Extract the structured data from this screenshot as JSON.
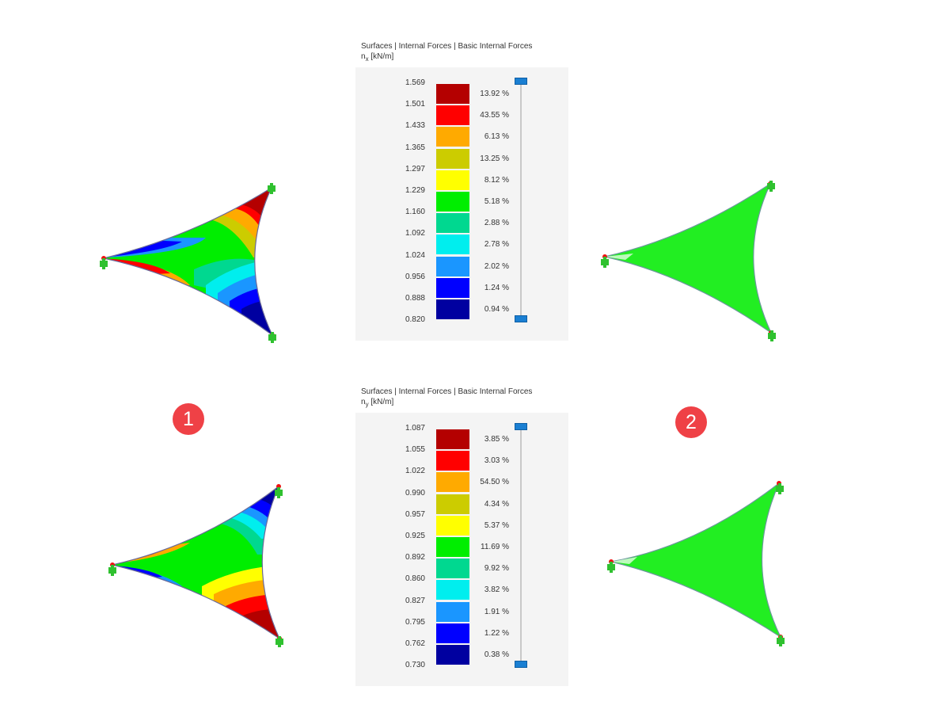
{
  "legends": [
    {
      "title": "Surfaces | Internal Forces | Basic Internal Forces",
      "symbol": "n",
      "subscript": "x",
      "unit": "[kN/m]",
      "values": [
        "1.569",
        "1.501",
        "1.433",
        "1.365",
        "1.297",
        "1.229",
        "1.160",
        "1.092",
        "1.024",
        "0.956",
        "0.888",
        "0.820"
      ],
      "percents": [
        "13.92 %",
        "43.55 %",
        "6.13 %",
        "13.25 %",
        "8.12 %",
        "5.18 %",
        "2.88 %",
        "2.78 %",
        "2.02 %",
        "1.24 %",
        "0.94 %"
      ]
    },
    {
      "title": "Surfaces | Internal Forces | Basic Internal Forces",
      "symbol": "n",
      "subscript": "y",
      "unit": "[kN/m]",
      "values": [
        "1.087",
        "1.055",
        "1.022",
        "0.990",
        "0.957",
        "0.925",
        "0.892",
        "0.860",
        "0.827",
        "0.795",
        "0.762",
        "0.730"
      ],
      "percents": [
        "3.85 %",
        "3.03 %",
        "54.50 %",
        "4.34 %",
        "5.37 %",
        "11.69 %",
        "9.92 %",
        "3.82 %",
        "1.91 %",
        "1.22 %",
        "0.38 %"
      ]
    }
  ],
  "scale_colors": [
    "#b40000",
    "#ff0000",
    "#ffaa00",
    "#cccc00",
    "#ffff00",
    "#00ee00",
    "#00d890",
    "#00eeee",
    "#1a96ff",
    "#0000ff",
    "#0000a0"
  ],
  "markers": [
    "1",
    "2"
  ],
  "surface_color_uniform": "#22ee22",
  "support_color": "#2fc12f",
  "node_color": "#ee1111"
}
